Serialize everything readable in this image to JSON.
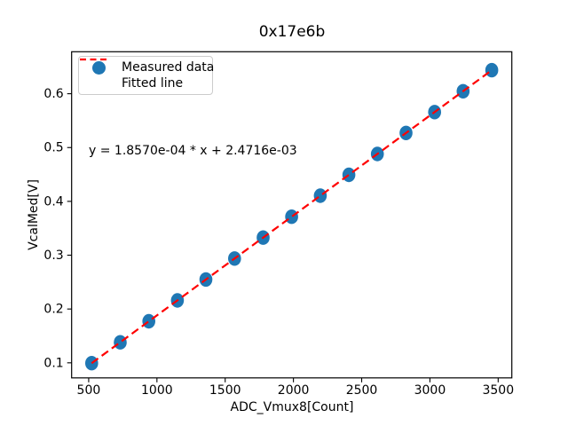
{
  "title": "0x17e6b",
  "annotation": "y = 1.8570e-04 * x + 2.4716e-03",
  "colors": {
    "marker": "#1f77b4",
    "fit_line": "#ff0000",
    "text": "#000000",
    "legend_border": "#cccccc",
    "background": "#ffffff"
  },
  "legend": {
    "position": "upper left",
    "items": [
      {
        "label": "Measured data",
        "swatch": "filled-circle",
        "color": "#1f77b4"
      },
      {
        "label": "Fitted line",
        "swatch": "dashed-line",
        "color": "#ff0000"
      }
    ]
  },
  "chart_data": {
    "type": "scatter",
    "title": "0x17e6b",
    "xlabel": "ADC_Vmux8[Count]",
    "ylabel": "VcalMed[V]",
    "xlim": [
      375,
      3600
    ],
    "ylim": [
      0.072,
      0.678
    ],
    "x_ticks": [
      500,
      1000,
      1500,
      2000,
      2500,
      3000,
      3500
    ],
    "y_ticks": [
      0.1,
      0.2,
      0.3,
      0.4,
      0.5,
      0.6
    ],
    "grid": false,
    "legend_position": "upper left",
    "series": [
      {
        "name": "Measured data",
        "type": "scatter",
        "color": "#1f77b4",
        "x": [
          522,
          731,
          941,
          1150,
          1359,
          1569,
          1778,
          1987,
          2197,
          2406,
          2615,
          2825,
          3034,
          3243,
          3453
        ],
        "y": [
          0.0994,
          0.1382,
          0.1772,
          0.216,
          0.2548,
          0.2938,
          0.3327,
          0.3715,
          0.4105,
          0.4493,
          0.4881,
          0.5271,
          0.5659,
          0.6047,
          0.6437
        ]
      },
      {
        "name": "Fitted line",
        "type": "line",
        "style": "dashed",
        "color": "#ff0000",
        "slope": 0.0001857,
        "intercept": 0.0024716,
        "x_start": 522,
        "x_end": 3453
      }
    ]
  }
}
